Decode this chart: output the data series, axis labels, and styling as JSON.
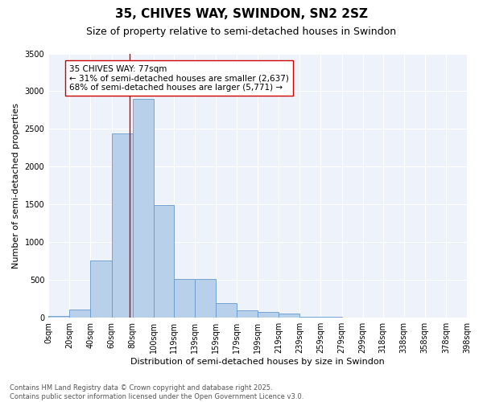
{
  "title": "35, CHIVES WAY, SWINDON, SN2 2SZ",
  "subtitle": "Size of property relative to semi-detached houses in Swindon",
  "xlabel": "Distribution of semi-detached houses by size in Swindon",
  "ylabel": "Number of semi-detached properties",
  "annotation_title": "35 CHIVES WAY: 77sqm",
  "annotation_line1": "← 31% of semi-detached houses are smaller (2,637)",
  "annotation_line2": "68% of semi-detached houses are larger (5,771) →",
  "property_size": 77,
  "bar_color": "#b8d0ea",
  "bar_edge_color": "#6699cc",
  "vline_color": "#cc0000",
  "background_color": "#eef2fb",
  "categories": [
    "0sqm",
    "20sqm",
    "40sqm",
    "60sqm",
    "80sqm",
    "100sqm",
    "119sqm",
    "139sqm",
    "159sqm",
    "179sqm",
    "199sqm",
    "219sqm",
    "239sqm",
    "259sqm",
    "279sqm",
    "299sqm",
    "318sqm",
    "338sqm",
    "358sqm",
    "378sqm",
    "398sqm"
  ],
  "bar_left_edges": [
    0,
    20,
    40,
    60,
    80,
    100,
    119,
    139,
    159,
    179,
    199,
    219,
    239,
    259,
    279,
    299,
    318,
    338,
    358,
    378
  ],
  "bar_widths": [
    20,
    20,
    20,
    20,
    20,
    19,
    20,
    20,
    20,
    20,
    20,
    20,
    20,
    20,
    20,
    19,
    20,
    20,
    20,
    20
  ],
  "bar_heights": [
    25,
    110,
    760,
    2440,
    2900,
    1490,
    510,
    510,
    195,
    95,
    75,
    55,
    18,
    8,
    4,
    3,
    2,
    1,
    1,
    0
  ],
  "ylim": [
    0,
    3500
  ],
  "yticks": [
    0,
    500,
    1000,
    1500,
    2000,
    2500,
    3000,
    3500
  ],
  "footnote": "Contains HM Land Registry data © Crown copyright and database right 2025.\nContains public sector information licensed under the Open Government Licence v3.0.",
  "title_fontsize": 11,
  "subtitle_fontsize": 9,
  "axis_label_fontsize": 8,
  "tick_fontsize": 7,
  "annotation_fontsize": 7.5,
  "footnote_fontsize": 6
}
